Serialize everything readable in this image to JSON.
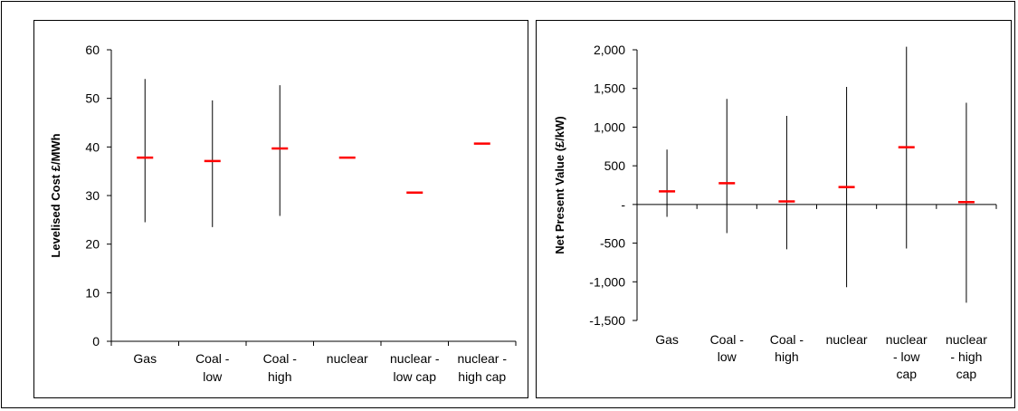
{
  "chart_data": [
    {
      "type": "scatter",
      "title": "",
      "xlabel": "",
      "ylabel": "Levelised Cost £/MWh",
      "ylim": [
        0,
        60
      ],
      "yticks": [
        0,
        10,
        20,
        30,
        40,
        50,
        60
      ],
      "ytick_labels": [
        "0",
        "10",
        "20",
        "30",
        "40",
        "50",
        "60"
      ],
      "categories": [
        [
          "Gas"
        ],
        [
          "Coal -",
          "low"
        ],
        [
          "Coal -",
          "high"
        ],
        [
          "nuclear"
        ],
        [
          "nuclear -",
          "low cap"
        ],
        [
          "nuclear -",
          "high cap"
        ]
      ],
      "grid": false,
      "series": [
        {
          "name": "",
          "values": [
            37.8,
            37.1,
            39.7,
            37.8,
            30.6,
            40.7
          ],
          "low": [
            24.5,
            23.5,
            25.8,
            37.8,
            30.6,
            40.7
          ],
          "high": [
            54.0,
            49.6,
            52.7,
            37.8,
            30.6,
            40.7
          ],
          "color": "#ff0000"
        }
      ]
    },
    {
      "type": "scatter",
      "title": "",
      "xlabel": "",
      "ylabel": "Net Present Value (£/kW)",
      "ylim": [
        -1500,
        2000
      ],
      "yticks": [
        -1500,
        -1000,
        -500,
        0,
        500,
        1000,
        1500,
        2000
      ],
      "ytick_labels": [
        "-1,500",
        "-1,000",
        "-500",
        "-",
        "500",
        "1,000",
        "1,500",
        "2,000"
      ],
      "categories": [
        [
          "Gas"
        ],
        [
          "Coal -",
          "low"
        ],
        [
          "Coal -",
          "high"
        ],
        [
          "nuclear"
        ],
        [
          "nuclear",
          "- low",
          "cap"
        ],
        [
          "nuclear",
          "- high",
          "cap"
        ]
      ],
      "grid": false,
      "series": [
        {
          "name": "",
          "values": [
            170,
            275,
            40,
            225,
            740,
            30
          ],
          "low": [
            -160,
            -370,
            -580,
            -1070,
            -570,
            -1270
          ],
          "high": [
            710,
            1365,
            1145,
            1520,
            2040,
            1315
          ],
          "color": "#ff0000"
        }
      ]
    }
  ]
}
